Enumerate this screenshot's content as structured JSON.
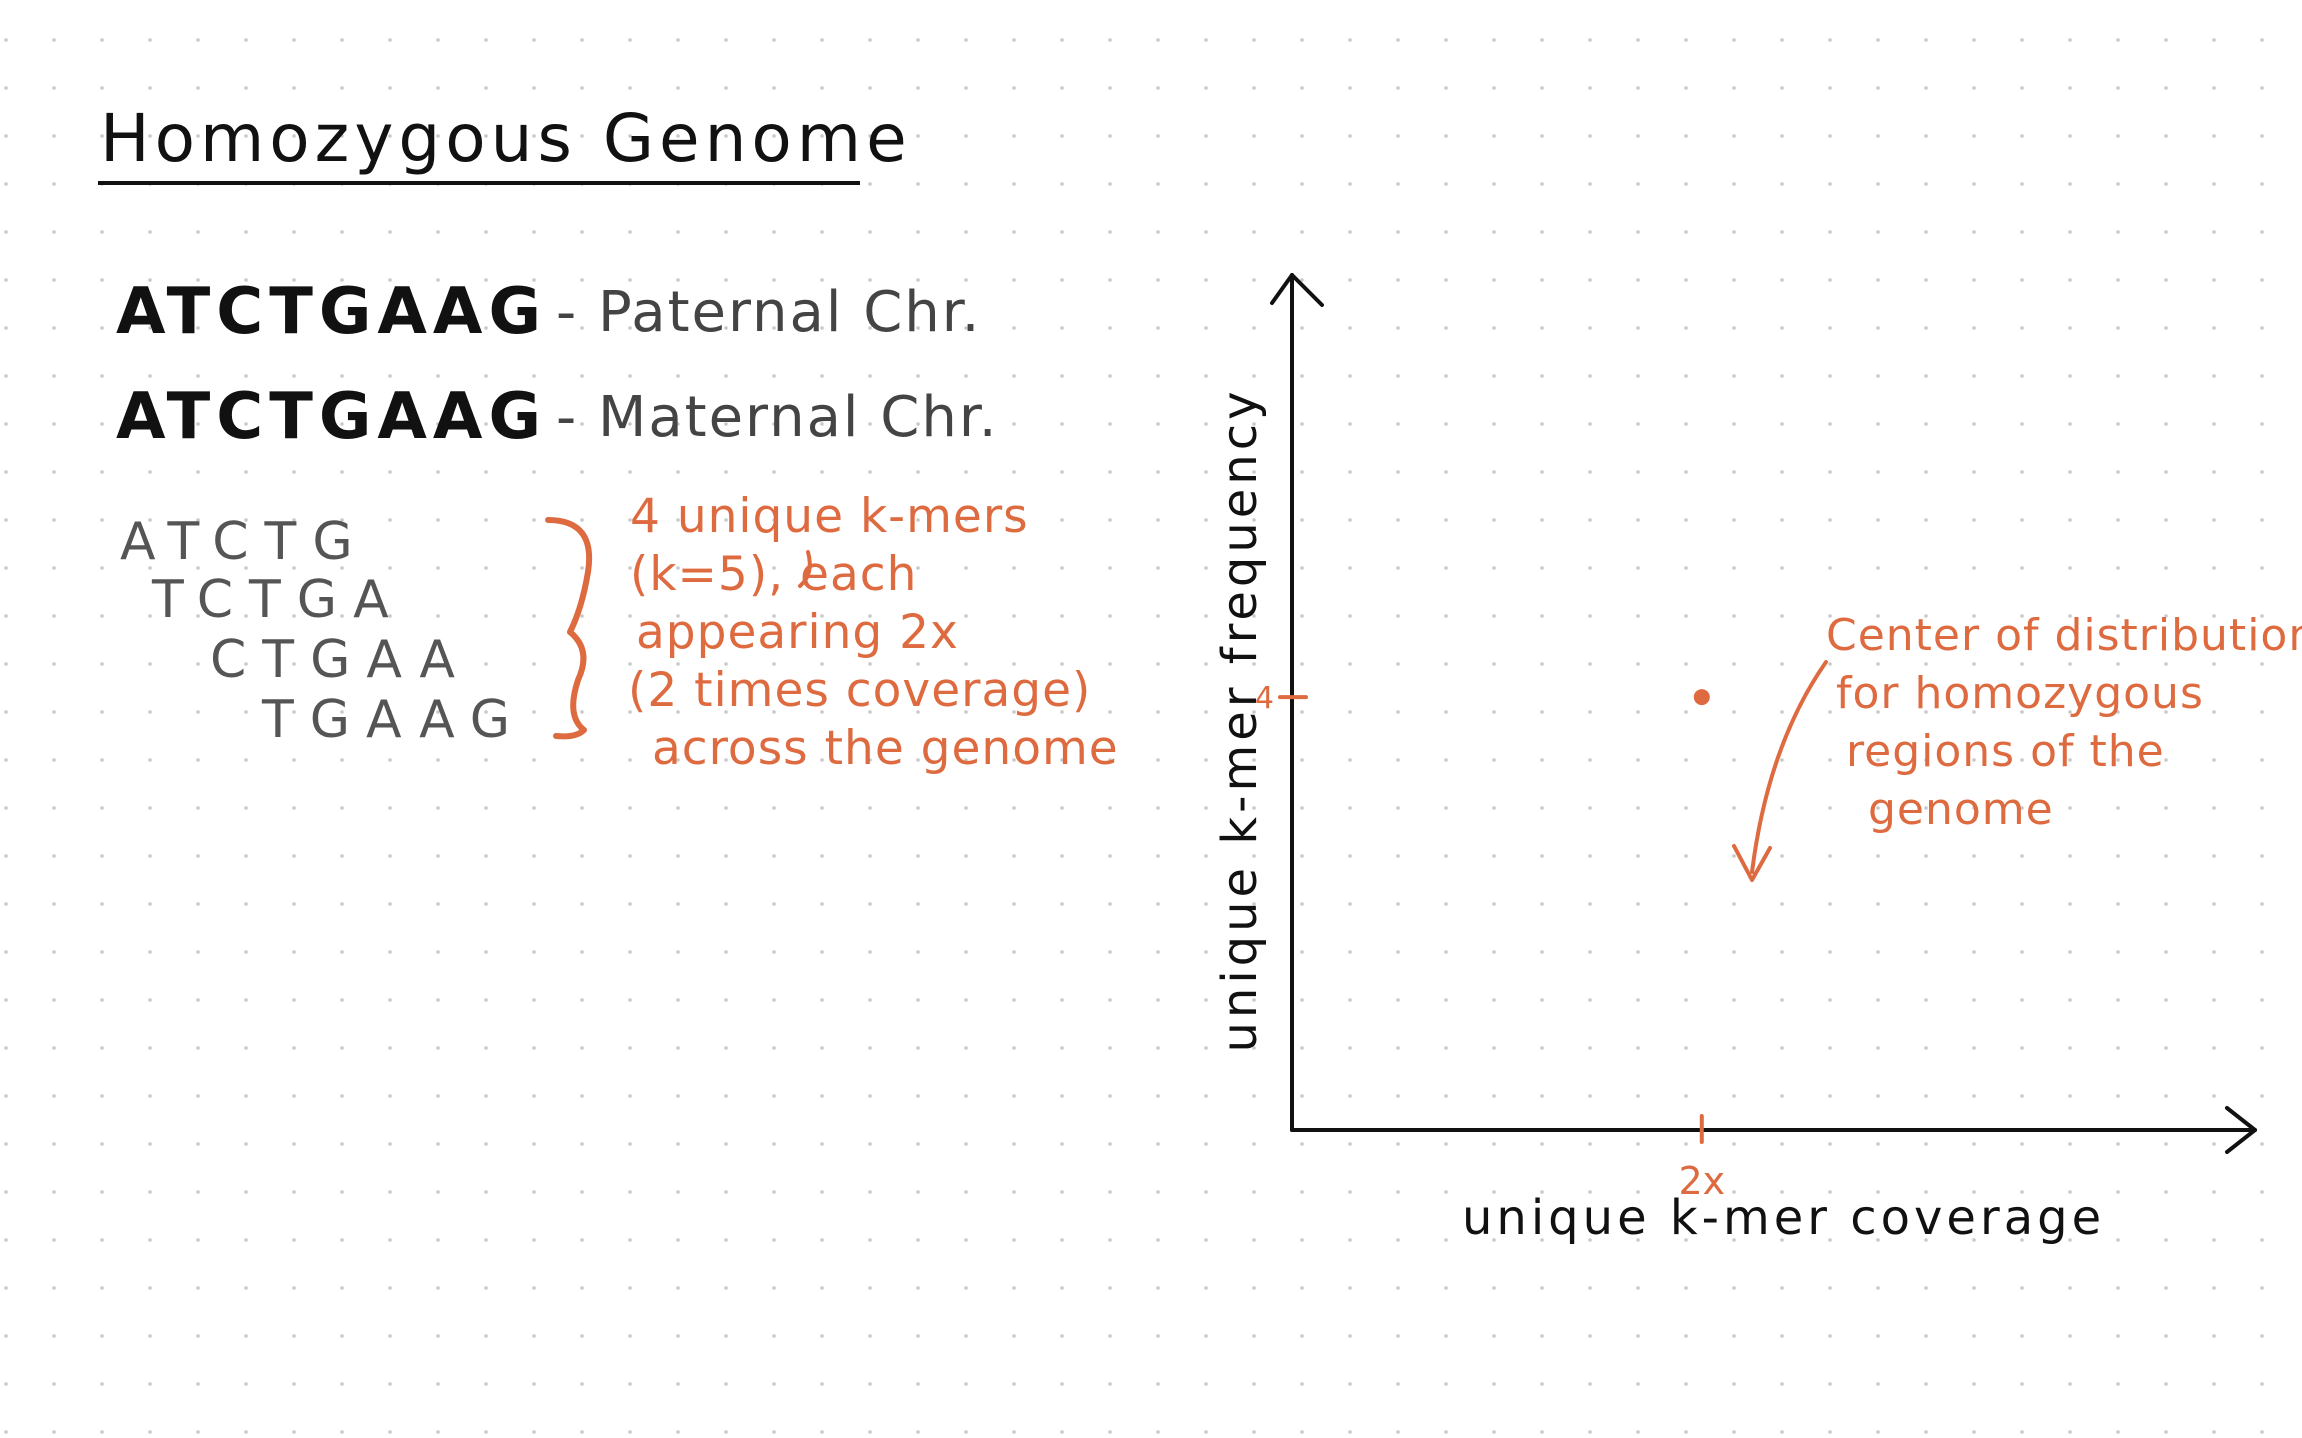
{
  "title": "Homozygous Genome",
  "chromosomes": [
    {
      "sequence": "ATCTGAAG",
      "label": "- Paternal Chr."
    },
    {
      "sequence": "ATCTGAAG",
      "label": "- Maternal Chr."
    }
  ],
  "kmers": [
    "ATCTG",
    "TCTGA",
    "CTGAA",
    "TGAAG"
  ],
  "kmer_note": {
    "line1": "4 unique k-mers",
    "line2": "(k=5), each",
    "line3": "appearing 2x",
    "line4": "(2 times coverage)",
    "line5": "across the genome"
  },
  "callout": {
    "line1": "Center of distribution",
    "line2": "for homozygous",
    "line3": "regions of the",
    "line4": "genome"
  },
  "colors": {
    "ink": "#111111",
    "accent": "#de6a40",
    "grid_dot": "#c9c9c9"
  },
  "chart_data": {
    "type": "scatter",
    "xlabel": "unique k-mer coverage",
    "ylabel": "unique k-mer frequency",
    "x_ticks": [
      {
        "value": 2,
        "label": "2x"
      }
    ],
    "y_ticks": [
      {
        "value": 4,
        "label": "4"
      }
    ],
    "xlim": [
      0,
      4.7
    ],
    "ylim": [
      0,
      7.9
    ],
    "points": [
      {
        "x": 2,
        "y": 4
      }
    ],
    "grid": false,
    "legend": "none"
  }
}
